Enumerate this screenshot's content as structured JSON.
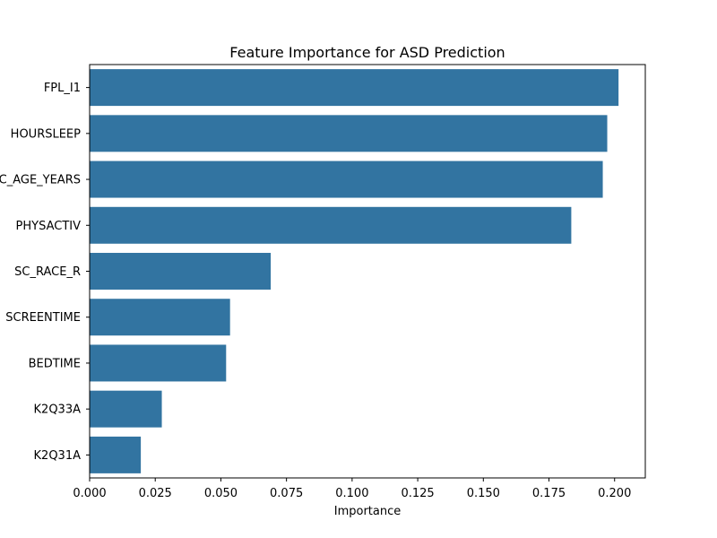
{
  "chart_data": {
    "type": "bar",
    "orientation": "horizontal",
    "title": "Feature Importance for ASD Prediction",
    "xlabel": "Importance",
    "ylabel": "",
    "categories": [
      "FPL_I1",
      "HOURSLEEP",
      "SC_AGE_YEARS",
      "PHYSACTIV",
      "SC_RACE_R",
      "SCREENTIME",
      "BEDTIME",
      "K2Q33A",
      "K2Q31A"
    ],
    "values": [
      0.2015,
      0.1972,
      0.1955,
      0.1835,
      0.069,
      0.0535,
      0.052,
      0.0275,
      0.0195
    ],
    "xlim": [
      0.0,
      0.2117
    ],
    "xticks": [
      0.0,
      0.025,
      0.05,
      0.075,
      0.1,
      0.125,
      0.15,
      0.175,
      0.2
    ],
    "xtick_labels": [
      "0.000",
      "0.025",
      "0.050",
      "0.075",
      "0.100",
      "0.125",
      "0.150",
      "0.175",
      "0.200"
    ],
    "bar_color": "#3274a1",
    "grid": false
  }
}
